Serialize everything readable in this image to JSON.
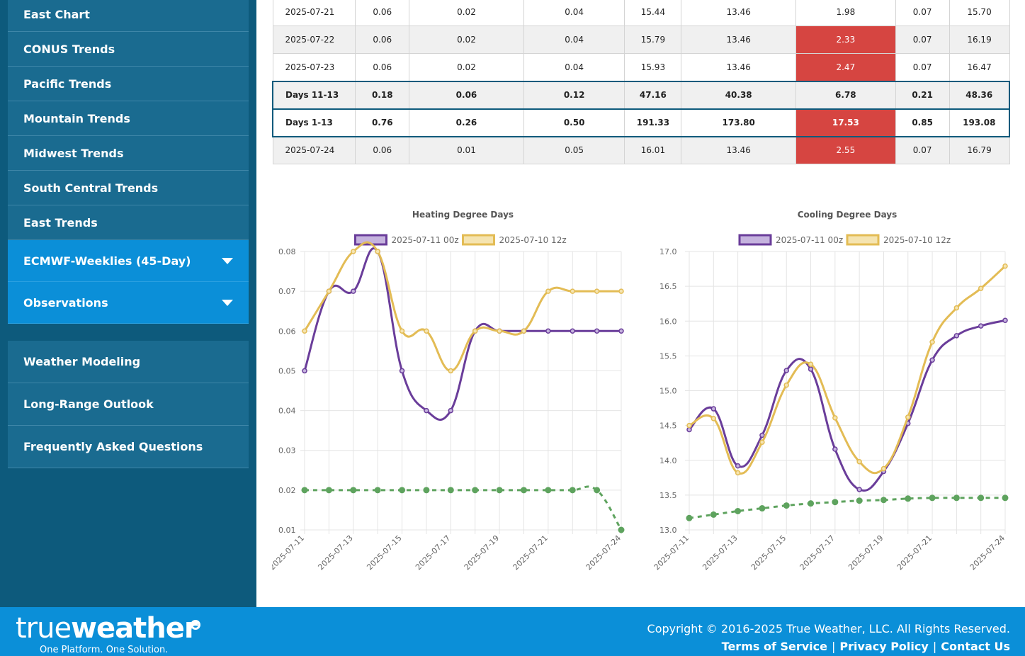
{
  "sidebar": {
    "group1": [
      {
        "label": "East Chart",
        "caret": false
      },
      {
        "label": "CONUS Trends",
        "caret": false
      },
      {
        "label": "Pacific Trends",
        "caret": false
      },
      {
        "label": "Mountain Trends",
        "caret": false
      },
      {
        "label": "Midwest Trends",
        "caret": false
      },
      {
        "label": "South Central Trends",
        "caret": false
      },
      {
        "label": "East Trends",
        "caret": false
      },
      {
        "label": "ECMWF-Weeklies (45-Day)",
        "caret": true
      },
      {
        "label": "Observations",
        "caret": true
      }
    ],
    "group2": [
      {
        "label": "Weather Modeling"
      },
      {
        "label": "Long-Range Outlook"
      },
      {
        "label": "Frequently Asked Questions"
      }
    ]
  },
  "table": {
    "rows": [
      {
        "cells": [
          "2025-07-21",
          "0.06",
          "0.02",
          "0.04",
          "15.44",
          "13.46",
          "1.98",
          "0.07",
          "15.70"
        ],
        "total": false,
        "highlight_col": -1
      },
      {
        "cells": [
          "2025-07-22",
          "0.06",
          "0.02",
          "0.04",
          "15.79",
          "13.46",
          "2.33",
          "0.07",
          "16.19"
        ],
        "total": false,
        "highlight_col": 6
      },
      {
        "cells": [
          "2025-07-23",
          "0.06",
          "0.02",
          "0.04",
          "15.93",
          "13.46",
          "2.47",
          "0.07",
          "16.47"
        ],
        "total": false,
        "highlight_col": 6
      },
      {
        "cells": [
          "Days 11-13",
          "0.18",
          "0.06",
          "0.12",
          "47.16",
          "40.38",
          "6.78",
          "0.21",
          "48.36"
        ],
        "total": true,
        "highlight_col": -1
      },
      {
        "cells": [
          "Days 1-13",
          "0.76",
          "0.26",
          "0.50",
          "191.33",
          "173.80",
          "17.53",
          "0.85",
          "193.08"
        ],
        "total": true,
        "highlight_col": 6
      },
      {
        "cells": [
          "2025-07-24",
          "0.06",
          "0.01",
          "0.05",
          "16.01",
          "13.46",
          "2.55",
          "0.07",
          "16.79"
        ],
        "total": false,
        "highlight_col": 6
      }
    ],
    "highlight_color": "#d64541"
  },
  "chart_data": [
    {
      "type": "line",
      "title": "Heating Degree Days",
      "x": [
        "2025-07-11",
        "2025-07-12",
        "2025-07-13",
        "2025-07-14",
        "2025-07-15",
        "2025-07-16",
        "2025-07-17",
        "2025-07-18",
        "2025-07-19",
        "2025-07-20",
        "2025-07-21",
        "2025-07-22",
        "2025-07-23",
        "2025-07-24"
      ],
      "x_tick_labels": [
        "2025-07-11",
        "2025-07-13",
        "2025-07-15",
        "2025-07-17",
        "2025-07-19",
        "2025-07-21",
        "2025-07-24"
      ],
      "x_tick_index": [
        0,
        2,
        4,
        6,
        8,
        10,
        13
      ],
      "ylim": [
        0.01,
        0.08
      ],
      "y_ticks": [
        0.08,
        0.07,
        0.06,
        0.05,
        0.04,
        0.03,
        0.02,
        0.01
      ],
      "grid": true,
      "legend_position": "top",
      "series": [
        {
          "name": "2025-07-11 00z",
          "color": "#6a3d9a",
          "fill": "#c5b3de",
          "dashed": false,
          "in_legend": true,
          "values": [
            0.05,
            0.07,
            0.07,
            0.08,
            0.05,
            0.04,
            0.04,
            0.06,
            0.06,
            0.06,
            0.06,
            0.06,
            0.06,
            0.06
          ]
        },
        {
          "name": "2025-07-10 12z",
          "color": "#e3bc55",
          "fill": "#f5e4b0",
          "dashed": false,
          "in_legend": true,
          "values": [
            0.06,
            0.07,
            0.08,
            0.08,
            0.06,
            0.06,
            0.05,
            0.06,
            0.06,
            0.06,
            0.07,
            0.07,
            0.07,
            0.07
          ]
        },
        {
          "name": "",
          "color": "#5ea35e",
          "fill": "#5ea35e",
          "dashed": true,
          "in_legend": false,
          "values": [
            0.02,
            0.02,
            0.02,
            0.02,
            0.02,
            0.02,
            0.02,
            0.02,
            0.02,
            0.02,
            0.02,
            0.02,
            0.02,
            0.01
          ]
        }
      ]
    },
    {
      "type": "line",
      "title": "Cooling Degree Days",
      "x": [
        "2025-07-11",
        "2025-07-12",
        "2025-07-13",
        "2025-07-14",
        "2025-07-15",
        "2025-07-16",
        "2025-07-17",
        "2025-07-18",
        "2025-07-19",
        "2025-07-20",
        "2025-07-21",
        "2025-07-22",
        "2025-07-23",
        "2025-07-24"
      ],
      "x_tick_labels": [
        "2025-07-11",
        "2025-07-13",
        "2025-07-15",
        "2025-07-17",
        "2025-07-19",
        "2025-07-21",
        "2025-07-24"
      ],
      "x_tick_index": [
        0,
        2,
        4,
        6,
        8,
        10,
        13
      ],
      "ylim": [
        13.0,
        17.0
      ],
      "y_ticks": [
        17.0,
        16.5,
        16.0,
        15.5,
        15.0,
        14.5,
        14.0,
        13.5,
        13.0
      ],
      "grid": true,
      "legend_position": "top",
      "series": [
        {
          "name": "2025-07-11 00z",
          "color": "#6a3d9a",
          "fill": "#c5b3de",
          "dashed": false,
          "in_legend": true,
          "values": [
            14.44,
            14.74,
            13.92,
            14.36,
            15.29,
            15.31,
            14.16,
            13.58,
            13.84,
            14.53,
            15.44,
            15.79,
            15.93,
            16.01
          ]
        },
        {
          "name": "2025-07-10 12z",
          "color": "#e3bc55",
          "fill": "#f5e4b0",
          "dashed": false,
          "in_legend": true,
          "values": [
            14.5,
            14.6,
            13.82,
            14.26,
            15.08,
            15.38,
            14.61,
            13.98,
            13.88,
            14.62,
            15.7,
            16.19,
            16.47,
            16.79
          ]
        },
        {
          "name": "",
          "color": "#5ea35e",
          "fill": "#5ea35e",
          "dashed": true,
          "in_legend": false,
          "values": [
            13.17,
            13.22,
            13.27,
            13.31,
            13.35,
            13.38,
            13.4,
            13.42,
            13.43,
            13.45,
            13.46,
            13.46,
            13.46,
            13.46
          ]
        }
      ]
    }
  ],
  "footer": {
    "logo_thin": "true",
    "logo_bold": "weather",
    "tagline": "One Platform. One Solution.",
    "copyright": "Copyright © 2016-2025 True Weather, LLC. All Rights Reserved.",
    "links": [
      "Terms of Service",
      "Privacy Policy",
      "Contact Us"
    ],
    "separator": "|"
  }
}
